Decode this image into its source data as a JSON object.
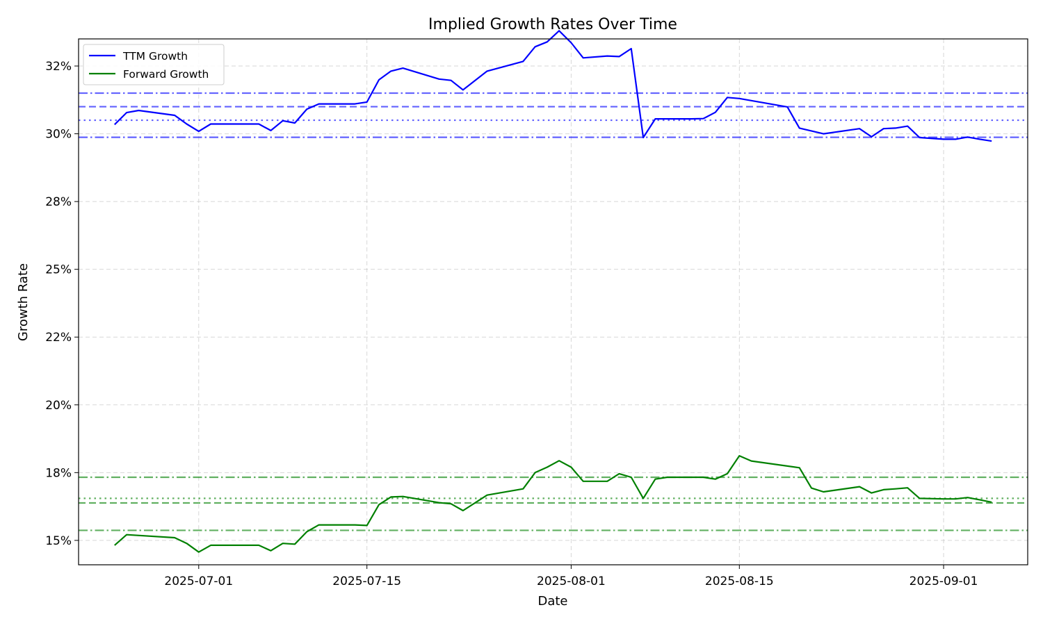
{
  "chart_data": {
    "type": "line",
    "title": "Implied Growth Rates Over Time",
    "xlabel": "Date",
    "ylabel": "Growth Rate",
    "xlim": [
      "2025-06-21",
      "2025-09-08"
    ],
    "ylim": [
      14.1,
      33.5
    ],
    "x_ticks": [
      "2025-07-01",
      "2025-07-15",
      "2025-08-01",
      "2025-08-15",
      "2025-09-01"
    ],
    "y_ticks": [
      {
        "value": 15.0,
        "label": "15%"
      },
      {
        "value": 17.5,
        "label": "18%"
      },
      {
        "value": 20.0,
        "label": "20%"
      },
      {
        "value": 22.5,
        "label": "22%"
      },
      {
        "value": 25.0,
        "label": "25%"
      },
      {
        "value": 27.5,
        "label": "28%"
      },
      {
        "value": 30.0,
        "label": "30%"
      },
      {
        "value": 32.5,
        "label": "32%"
      }
    ],
    "grid": true,
    "legend_position": "top-left",
    "series": [
      {
        "name": "TTM Growth",
        "color": "#0000ff",
        "points": [
          [
            "2025-06-24",
            30.34
          ],
          [
            "2025-06-25",
            30.78
          ],
          [
            "2025-06-26",
            30.86
          ],
          [
            "2025-06-29",
            30.68
          ],
          [
            "2025-06-30",
            30.36
          ],
          [
            "2025-07-01",
            30.09
          ],
          [
            "2025-07-02",
            30.36
          ],
          [
            "2025-07-06",
            30.36
          ],
          [
            "2025-07-07",
            30.12
          ],
          [
            "2025-07-08",
            30.48
          ],
          [
            "2025-07-09",
            30.4
          ],
          [
            "2025-07-10",
            30.91
          ],
          [
            "2025-07-11",
            31.1
          ],
          [
            "2025-07-14",
            31.1
          ],
          [
            "2025-07-15",
            31.17
          ],
          [
            "2025-07-16",
            31.99
          ],
          [
            "2025-07-17",
            32.31
          ],
          [
            "2025-07-18",
            32.42
          ],
          [
            "2025-07-21",
            32.02
          ],
          [
            "2025-07-22",
            31.97
          ],
          [
            "2025-07-23",
            31.62
          ],
          [
            "2025-07-25",
            32.31
          ],
          [
            "2025-07-28",
            32.67
          ],
          [
            "2025-07-29",
            33.21
          ],
          [
            "2025-07-30",
            33.39
          ],
          [
            "2025-07-31",
            33.8
          ],
          [
            "2025-08-01",
            33.36
          ],
          [
            "2025-08-02",
            32.8
          ],
          [
            "2025-08-04",
            32.87
          ],
          [
            "2025-08-05",
            32.85
          ],
          [
            "2025-08-06",
            33.14
          ],
          [
            "2025-08-07",
            29.86
          ],
          [
            "2025-08-08",
            30.55
          ],
          [
            "2025-08-11",
            30.55
          ],
          [
            "2025-08-12",
            30.56
          ],
          [
            "2025-08-13",
            30.79
          ],
          [
            "2025-08-14",
            31.34
          ],
          [
            "2025-08-15",
            31.3
          ],
          [
            "2025-08-19",
            30.99
          ],
          [
            "2025-08-20",
            30.21
          ],
          [
            "2025-08-22",
            30.0
          ],
          [
            "2025-08-25",
            30.19
          ],
          [
            "2025-08-26",
            29.89
          ],
          [
            "2025-08-27",
            30.19
          ],
          [
            "2025-08-28",
            30.21
          ],
          [
            "2025-08-29",
            30.28
          ],
          [
            "2025-08-30",
            29.86
          ],
          [
            "2025-09-01",
            29.8
          ],
          [
            "2025-09-02",
            29.8
          ],
          [
            "2025-09-03",
            29.88
          ],
          [
            "2025-09-04",
            29.8
          ],
          [
            "2025-09-05",
            29.73
          ]
        ]
      },
      {
        "name": "Forward Growth",
        "color": "#008000",
        "points": [
          [
            "2025-06-24",
            14.82
          ],
          [
            "2025-06-25",
            15.21
          ],
          [
            "2025-06-29",
            15.1
          ],
          [
            "2025-06-30",
            14.89
          ],
          [
            "2025-07-01",
            14.57
          ],
          [
            "2025-07-02",
            14.82
          ],
          [
            "2025-07-06",
            14.82
          ],
          [
            "2025-07-07",
            14.62
          ],
          [
            "2025-07-08",
            14.89
          ],
          [
            "2025-07-09",
            14.86
          ],
          [
            "2025-07-10",
            15.32
          ],
          [
            "2025-07-11",
            15.57
          ],
          [
            "2025-07-14",
            15.57
          ],
          [
            "2025-07-15",
            15.55
          ],
          [
            "2025-07-16",
            16.32
          ],
          [
            "2025-07-17",
            16.6
          ],
          [
            "2025-07-18",
            16.62
          ],
          [
            "2025-07-21",
            16.39
          ],
          [
            "2025-07-22",
            16.35
          ],
          [
            "2025-07-23",
            16.1
          ],
          [
            "2025-07-25",
            16.67
          ],
          [
            "2025-07-28",
            16.9
          ],
          [
            "2025-07-29",
            17.5
          ],
          [
            "2025-07-30",
            17.7
          ],
          [
            "2025-07-31",
            17.94
          ],
          [
            "2025-08-01",
            17.7
          ],
          [
            "2025-08-02",
            17.18
          ],
          [
            "2025-08-04",
            17.18
          ],
          [
            "2025-08-05",
            17.46
          ],
          [
            "2025-08-06",
            17.33
          ],
          [
            "2025-08-07",
            16.55
          ],
          [
            "2025-08-08",
            17.26
          ],
          [
            "2025-08-09",
            17.33
          ],
          [
            "2025-08-12",
            17.33
          ],
          [
            "2025-08-13",
            17.26
          ],
          [
            "2025-08-14",
            17.46
          ],
          [
            "2025-08-15",
            18.12
          ],
          [
            "2025-08-16",
            17.93
          ],
          [
            "2025-08-20",
            17.68
          ],
          [
            "2025-08-21",
            16.93
          ],
          [
            "2025-08-22",
            16.79
          ],
          [
            "2025-08-25",
            16.98
          ],
          [
            "2025-08-26",
            16.75
          ],
          [
            "2025-08-27",
            16.87
          ],
          [
            "2025-08-28",
            16.9
          ],
          [
            "2025-08-29",
            16.94
          ],
          [
            "2025-08-30",
            16.55
          ],
          [
            "2025-09-01",
            16.53
          ],
          [
            "2025-09-02",
            16.53
          ],
          [
            "2025-09-03",
            16.58
          ],
          [
            "2025-09-04",
            16.5
          ],
          [
            "2025-09-05",
            16.41
          ]
        ]
      }
    ],
    "reference_lines": [
      {
        "series": "TTM Growth",
        "value": 31.5,
        "style": "dashdot",
        "color": "#0000ff"
      },
      {
        "series": "TTM Growth",
        "value": 31.0,
        "style": "dashed",
        "color": "#0000ff"
      },
      {
        "series": "TTM Growth",
        "value": 30.5,
        "style": "dotted",
        "color": "#0000ff"
      },
      {
        "series": "TTM Growth",
        "value": 29.87,
        "style": "dashdot",
        "color": "#0000ff"
      },
      {
        "series": "Forward Growth",
        "value": 17.33,
        "style": "dashdot",
        "color": "#008000"
      },
      {
        "series": "Forward Growth",
        "value": 16.55,
        "style": "dotted",
        "color": "#008000"
      },
      {
        "series": "Forward Growth",
        "value": 16.38,
        "style": "dashed",
        "color": "#008000"
      },
      {
        "series": "Forward Growth",
        "value": 15.37,
        "style": "dashdot",
        "color": "#008000"
      }
    ]
  }
}
